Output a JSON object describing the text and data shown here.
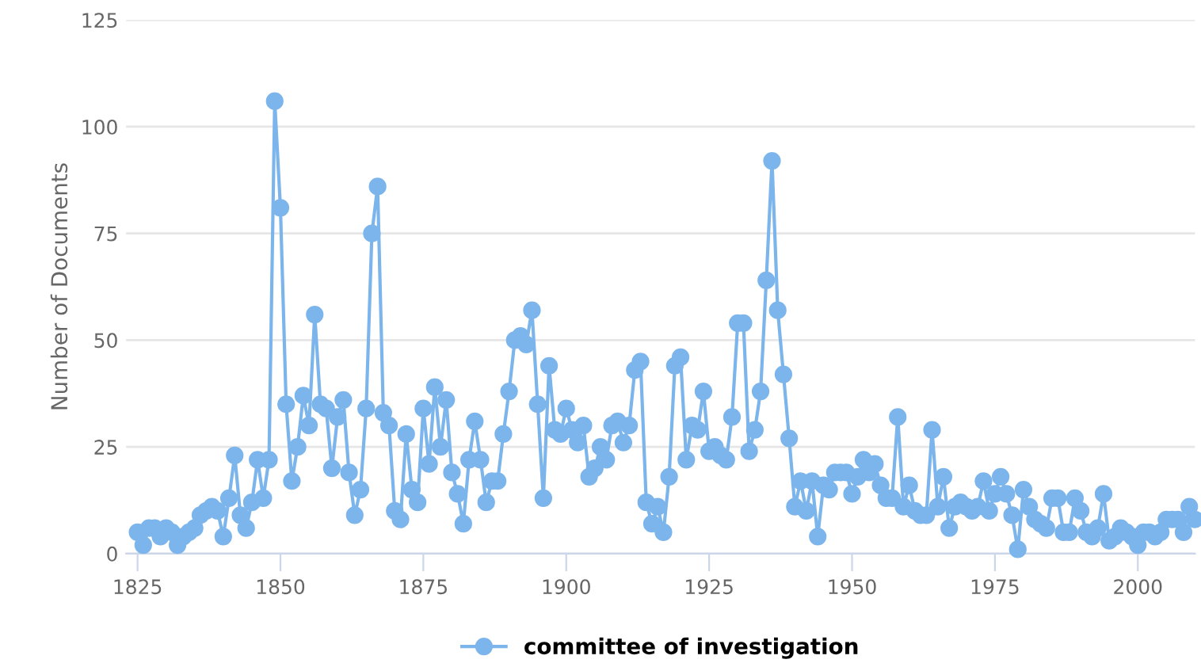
{
  "chart_data": {
    "type": "line",
    "ylabel": "Number of Documents",
    "xlim": [
      1823,
      2010
    ],
    "ylim": [
      0,
      125
    ],
    "xticks": [
      1825,
      1850,
      1875,
      1900,
      1925,
      1950,
      1975,
      2000
    ],
    "yticks": [
      0,
      25,
      50,
      75,
      100,
      125
    ],
    "grid": "y",
    "legend": "bottom",
    "marker": "circle",
    "line_style": "solid",
    "x": [
      1825,
      1826,
      1827,
      1828,
      1829,
      1830,
      1831,
      1832,
      1833,
      1834,
      1835,
      1836,
      1837,
      1838,
      1839,
      1840,
      1841,
      1842,
      1843,
      1844,
      1845,
      1846,
      1847,
      1848,
      1849,
      1850,
      1851,
      1852,
      1853,
      1854,
      1855,
      1856,
      1857,
      1858,
      1859,
      1860,
      1861,
      1862,
      1863,
      1864,
      1865,
      1866,
      1867,
      1868,
      1869,
      1870,
      1871,
      1872,
      1873,
      1874,
      1875,
      1876,
      1877,
      1878,
      1879,
      1880,
      1881,
      1882,
      1883,
      1884,
      1885,
      1886,
      1887,
      1888,
      1889,
      1890,
      1891,
      1892,
      1893,
      1894,
      1895,
      1896,
      1897,
      1898,
      1899,
      1900,
      1901,
      1902,
      1903,
      1904,
      1905,
      1906,
      1907,
      1908,
      1909,
      1910,
      1911,
      1912,
      1913,
      1914,
      1915,
      1916,
      1917,
      1918,
      1919,
      1920,
      1921,
      1922,
      1923,
      1924,
      1925,
      1926,
      1927,
      1928,
      1929,
      1930,
      1931,
      1932,
      1933,
      1934,
      1935,
      1936,
      1937,
      1938,
      1939,
      1940,
      1941,
      1942,
      1943,
      1944,
      1945,
      1946,
      1947,
      1948,
      1949,
      1950,
      1951,
      1952,
      1953,
      1954,
      1955,
      1956,
      1957,
      1958,
      1959,
      1960,
      1961,
      1962,
      1963,
      1964,
      1965,
      1966,
      1967,
      1968,
      1969,
      1970,
      1971,
      1972,
      1973,
      1974,
      1975,
      1976,
      1977,
      1978,
      1979,
      1980,
      1981,
      1982,
      1983,
      1984,
      1985,
      1986,
      1987,
      1988,
      1989,
      1990,
      1991,
      1992,
      1993,
      1994,
      1995,
      1996,
      1997,
      1998,
      1999,
      2000,
      2001,
      2002,
      2003,
      2004,
      2005,
      2006,
      2007,
      2008,
      2009,
      2010
    ],
    "series": [
      {
        "name": "committee of investigation",
        "color": "#7cb5ec",
        "values": [
          5,
          2,
          6,
          6,
          4,
          6,
          5,
          2,
          4,
          5,
          6,
          9,
          10,
          11,
          10,
          4,
          13,
          23,
          9,
          6,
          12,
          22,
          13,
          22,
          106,
          81,
          35,
          17,
          25,
          37,
          30,
          56,
          35,
          34,
          20,
          32,
          36,
          19,
          9,
          15,
          34,
          75,
          86,
          33,
          30,
          10,
          8,
          28,
          15,
          12,
          34,
          21,
          39,
          25,
          36,
          19,
          14,
          7,
          22,
          31,
          22,
          12,
          17,
          17,
          28,
          38,
          50,
          51,
          49,
          57,
          35,
          13,
          44,
          29,
          28,
          34,
          29,
          26,
          30,
          18,
          20,
          25,
          22,
          30,
          31,
          26,
          30,
          43,
          45,
          12,
          7,
          11,
          5,
          18,
          44,
          46,
          22,
          30,
          29,
          38,
          24,
          25,
          23,
          22,
          32,
          54,
          54,
          24,
          29,
          38,
          64,
          92,
          57,
          42,
          27,
          11,
          17,
          10,
          17,
          4,
          16,
          15,
          19,
          19,
          19,
          14,
          18,
          22,
          19,
          21,
          16,
          13,
          13,
          32,
          11,
          16,
          10,
          9,
          9,
          29,
          11,
          18,
          6,
          11,
          12,
          11,
          10,
          11,
          17,
          10,
          14,
          18,
          14,
          9,
          1,
          15,
          11,
          8,
          7,
          6,
          13,
          13,
          5,
          5,
          13,
          10,
          5,
          4,
          6,
          14,
          3,
          4,
          6,
          5,
          4,
          2,
          5,
          5,
          4,
          5,
          8,
          8,
          8,
          5,
          11,
          8
        ]
      }
    ]
  }
}
